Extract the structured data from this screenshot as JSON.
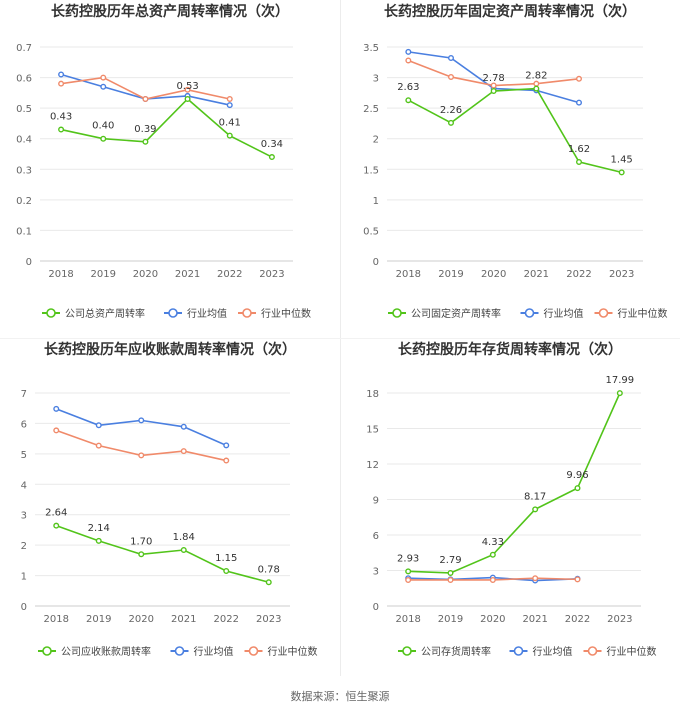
{
  "source_text": "数据来源：恒生聚源",
  "legend": {
    "industry_avg": "行业均值",
    "industry_median": "行业中位数"
  },
  "colors": {
    "company": "#52c41a",
    "industry_avg": "#4a7fe0",
    "industry_median": "#f08a6a",
    "grid": "#e9e9e9",
    "axis_text": "#666666",
    "title": "#333333"
  },
  "chart_data": [
    {
      "type": "line",
      "title": "长药控股历年总资产周转率情况（次）",
      "categories": [
        "2018",
        "2019",
        "2020",
        "2021",
        "2022",
        "2023"
      ],
      "ylim": [
        0,
        0.7
      ],
      "yticks": [
        "0",
        "0.1",
        "0.2",
        "0.3",
        "0.4",
        "0.5",
        "0.6",
        "0.7"
      ],
      "series": [
        {
          "name": "公司总资产周转率",
          "key": "company",
          "values": [
            0.43,
            0.4,
            0.39,
            0.53,
            0.41,
            0.34
          ],
          "labels": [
            "0.43",
            "0.40",
            "0.39",
            "0.53",
            "0.41",
            "0.34"
          ]
        },
        {
          "name": "行业均值",
          "key": "industry_avg",
          "values": [
            0.61,
            0.57,
            0.53,
            0.54,
            0.51,
            null
          ]
        },
        {
          "name": "行业中位数",
          "key": "industry_median",
          "values": [
            0.58,
            0.6,
            0.53,
            0.56,
            0.53,
            null
          ]
        }
      ],
      "grid": true,
      "legend_position": "bottom"
    },
    {
      "type": "line",
      "title": "长药控股历年固定资产周转率情况（次）",
      "categories": [
        "2018",
        "2019",
        "2020",
        "2021",
        "2022",
        "2023"
      ],
      "ylim": [
        0,
        3.5
      ],
      "yticks": [
        "0",
        "0.5",
        "1",
        "1.5",
        "2",
        "2.5",
        "3",
        "3.5"
      ],
      "series": [
        {
          "name": "公司固定资产周转率",
          "key": "company",
          "values": [
            2.63,
            2.26,
            2.78,
            2.82,
            1.62,
            1.45
          ],
          "labels": [
            "2.63",
            "2.26",
            "2.78",
            "2.82",
            "1.62",
            "1.45"
          ]
        },
        {
          "name": "行业均值",
          "key": "industry_avg",
          "values": [
            3.42,
            3.32,
            2.82,
            2.79,
            2.59,
            null
          ]
        },
        {
          "name": "行业中位数",
          "key": "industry_median",
          "values": [
            3.28,
            3.01,
            2.87,
            2.9,
            2.98,
            null
          ]
        }
      ],
      "grid": true,
      "legend_position": "bottom"
    },
    {
      "type": "line",
      "title": "长药控股历年应收账款周转率情况（次）",
      "categories": [
        "2018",
        "2019",
        "2020",
        "2021",
        "2022",
        "2023"
      ],
      "ylim": [
        0,
        7
      ],
      "yticks": [
        "0",
        "1",
        "2",
        "3",
        "4",
        "5",
        "6",
        "7"
      ],
      "series": [
        {
          "name": "公司应收账款周转率",
          "key": "company",
          "values": [
            2.64,
            2.14,
            1.7,
            1.84,
            1.15,
            0.78
          ],
          "labels": [
            "2.64",
            "2.14",
            "1.70",
            "1.84",
            "1.15",
            "0.78"
          ]
        },
        {
          "name": "行业均值",
          "key": "industry_avg",
          "values": [
            6.48,
            5.94,
            6.1,
            5.89,
            5.28,
            null
          ]
        },
        {
          "name": "行业中位数",
          "key": "industry_median",
          "values": [
            5.77,
            5.27,
            4.95,
            5.09,
            4.78,
            null
          ]
        }
      ],
      "grid": true,
      "legend_position": "bottom"
    },
    {
      "type": "line",
      "title": "长药控股历年存货周转率情况（次）",
      "categories": [
        "2018",
        "2019",
        "2020",
        "2021",
        "2022",
        "2023"
      ],
      "ylim": [
        0,
        18
      ],
      "yticks": [
        "0",
        "3",
        "6",
        "9",
        "12",
        "15",
        "18"
      ],
      "series": [
        {
          "name": "公司存货周转率",
          "key": "company",
          "values": [
            2.93,
            2.79,
            4.33,
            8.17,
            9.96,
            17.99
          ],
          "labels": [
            "2.93",
            "2.79",
            "4.33",
            "8.17",
            "9.96",
            "17.99"
          ]
        },
        {
          "name": "行业均值",
          "key": "industry_avg",
          "values": [
            2.35,
            2.25,
            2.4,
            2.15,
            2.3,
            null
          ]
        },
        {
          "name": "行业中位数",
          "key": "industry_median",
          "values": [
            2.2,
            2.2,
            2.2,
            2.35,
            2.25,
            null
          ]
        }
      ],
      "grid": true,
      "legend_position": "bottom"
    }
  ]
}
